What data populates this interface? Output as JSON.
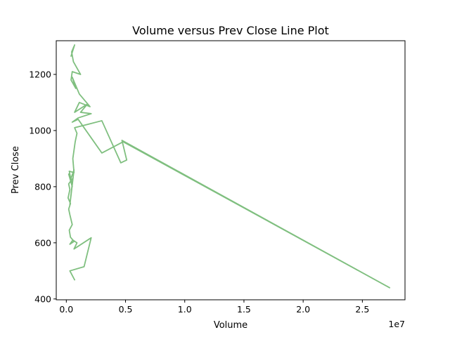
{
  "chart_data": {
    "type": "line",
    "title": "Volume versus Prev Close Line Plot",
    "xlabel": "Volume",
    "ylabel": "Prev Close",
    "x_offset_label": "1e7",
    "x_scale": 10000000,
    "xlim": [
      -850000,
      28600000
    ],
    "ylim": [
      397,
      1320
    ],
    "x_ticks": [
      0,
      5000000,
      10000000,
      15000000,
      20000000,
      25000000
    ],
    "x_tick_labels": [
      "0.0",
      "0.5",
      "1.0",
      "1.5",
      "2.0",
      "2.5"
    ],
    "y_ticks": [
      400,
      600,
      800,
      1000,
      1200
    ],
    "y_tick_labels": [
      "400",
      "600",
      "800",
      "1000",
      "1200"
    ],
    "grid": false,
    "series": [
      {
        "name": "Prev Close",
        "color": "#7fbf7f",
        "x": [
          700000,
          300000,
          1500000,
          2100000,
          650000,
          900000,
          550000,
          300000,
          650000,
          350000,
          250000,
          500000,
          300000,
          200000,
          350000,
          150000,
          300000,
          200000,
          550000,
          300000,
          650000,
          400000,
          200000,
          500000,
          250000,
          650000,
          550000,
          750000,
          900000,
          700000,
          3000000,
          4600000,
          5100000,
          4700000,
          27300000,
          4800000,
          3000000,
          1000000,
          500000,
          1000000,
          2100000,
          1200000,
          1800000,
          700000,
          1100000,
          2000000,
          1600000,
          1100000,
          500000,
          800000,
          400000,
          500000,
          1200000,
          600000,
          450000,
          650000,
          400000,
          700000
        ],
        "y": [
          468,
          500,
          515,
          618,
          578,
          600,
          610,
          595,
          605,
          620,
          645,
          665,
          700,
          720,
          740,
          760,
          790,
          810,
          830,
          735,
          860,
          830,
          845,
          800,
          855,
          850,
          900,
          960,
          990,
          1010,
          1035,
          885,
          895,
          965,
          440,
          960,
          920,
          1040,
          1030,
          1045,
          1060,
          1065,
          1095,
          1065,
          1100,
          1085,
          1105,
          1130,
          1190,
          1150,
          1180,
          1210,
          1200,
          1245,
          1280,
          1300,
          1265,
          1305
        ]
      }
    ]
  }
}
